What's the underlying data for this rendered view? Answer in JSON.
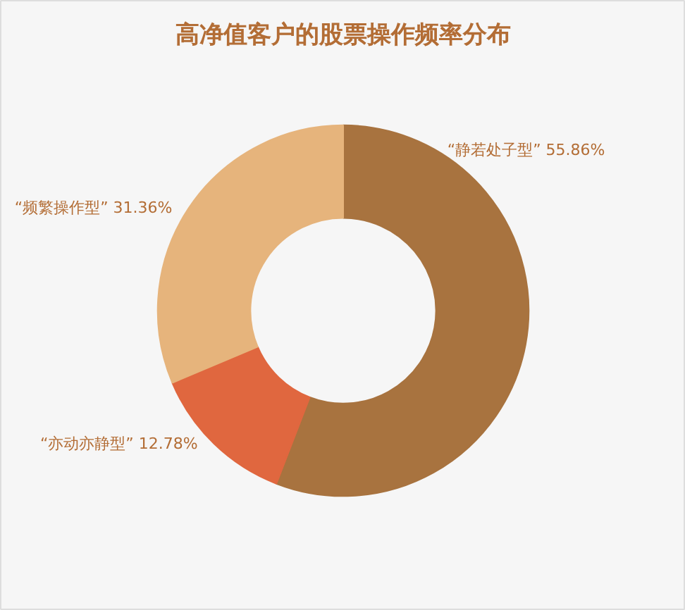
{
  "chart_data": {
    "type": "donut",
    "title": "高净值客户的股票操作频率分布",
    "categories": [
      "“静若处子型”",
      "“亦动亦静型”",
      "“频繁操作型”"
    ],
    "values": [
      55.86,
      12.78,
      31.36
    ],
    "value_labels": [
      "55.86%",
      "12.78%",
      "31.36%"
    ],
    "colors": [
      "#a8733f",
      "#e0673f",
      "#e6b47c"
    ]
  }
}
